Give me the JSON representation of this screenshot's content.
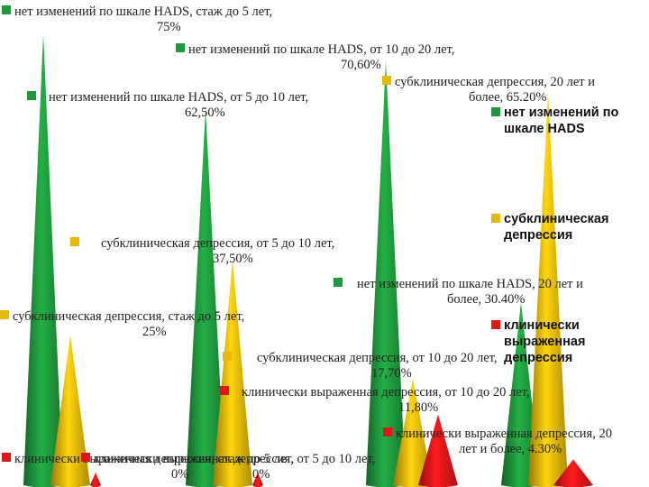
{
  "chart_data": {
    "type": "bar",
    "shape": "cone",
    "categories": [
      "стаж до 5 лет",
      "от 5 до 10 лет",
      "от 10 до 20 лет",
      "20 лет и более"
    ],
    "ylim": [
      0,
      75
    ],
    "series": [
      {
        "name": "нет изменений по шкале HADS",
        "color": "#1e9a3c",
        "values": [
          75,
          62.5,
          70.6,
          30.4
        ]
      },
      {
        "name": "субклиническая депрессия",
        "color": "#e5b90a",
        "values": [
          25,
          37.5,
          17.7,
          65.2
        ]
      },
      {
        "name": "клинически выраженная депрессия",
        "color": "#e0161b",
        "values": [
          0,
          0,
          11.8,
          4.3
        ]
      }
    ],
    "data_labels": [
      [
        "нет изменений по шкале HADS, стаж до 5 лет,",
        "75%"
      ],
      [
        "нет изменений по шкале HADS, от 10 до 20 лет,",
        "70,60%"
      ],
      [
        "субклиническая депрессия, 20 лет и",
        "более, 65.20%"
      ],
      [
        "нет изменений по шкале HADS, от 5 до 10 лет,",
        "62,50%"
      ],
      [
        "субклиническая депрессия, от 5 до 10 лет,",
        "37,50%"
      ],
      [
        "нет изменений по шкале HADS, 20 лет и",
        "более, 30.40%"
      ],
      [
        "субклиническая депрессия, стаж до 5 лет,",
        "25%"
      ],
      [
        "субклиническая депрессия, от 10 до 20 лет,",
        "17,70%"
      ],
      [
        "клинически выраженная депрессия, от 10 до 20 лет,",
        "11,80%"
      ],
      [
        "клинически выраженная депрессия, 20",
        "лет и более, 4.30%"
      ],
      [
        "клинически выраженная депрессия, стаж до 5 лет,",
        "0%"
      ],
      [
        "клинически выраженная депрессия, от 5 до 10 лет,",
        "0%"
      ]
    ],
    "legend": [
      "нет изменений по шкале HADS",
      "субклиническая депрессия",
      "клинически выраженная депрессия"
    ]
  }
}
